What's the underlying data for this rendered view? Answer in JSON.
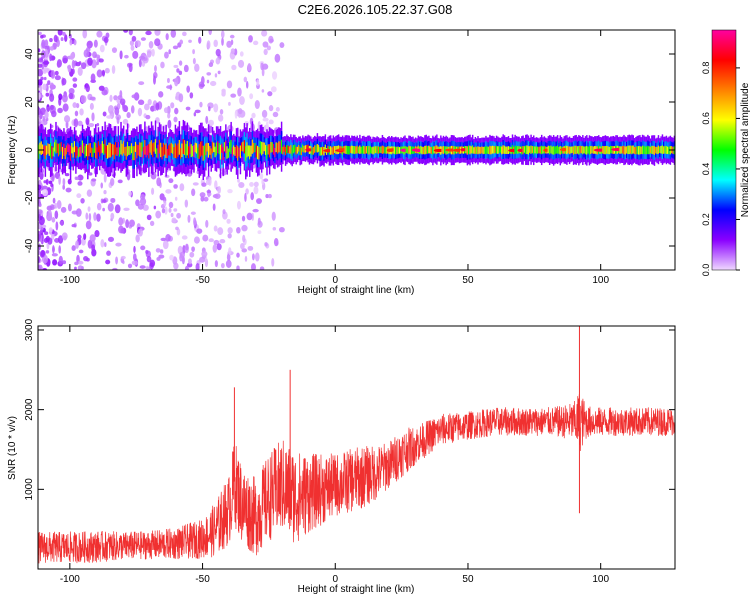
{
  "page": {
    "title": "C2E6.2026.105.22.37.G08"
  },
  "chart_data": [
    {
      "type": "heatmap",
      "xlabel": "Height of straight line (km)",
      "ylabel": "Frequency (Hz)",
      "xlim": [
        -112,
        128
      ],
      "ylim": [
        -50,
        50
      ],
      "x_ticks": [
        -100,
        -50,
        0,
        50,
        100
      ],
      "y_ticks": [
        -40,
        -20,
        0,
        20,
        40
      ],
      "colorbar": {
        "label": "Normalized spectral amplitude",
        "range": [
          0,
          0.95
        ],
        "ticks": [
          "0.0",
          "0.2",
          "0.4",
          "0.6",
          "0.8"
        ],
        "colors": [
          "#f0d9ff",
          "#8a00ff",
          "#0000ff",
          "#00ffff",
          "#00ff00",
          "#ffff00",
          "#ff8000",
          "#ff0000",
          "#ff00a0"
        ]
      },
      "features": {
        "carrier_line_freq_hz": 0,
        "carrier_line_x_range": [
          -112,
          128
        ],
        "noise_region_x_range": [
          -112,
          -20
        ],
        "noise_region_freq_range": [
          -50,
          50
        ]
      }
    },
    {
      "type": "line",
      "xlabel": "Height of straight line (km)",
      "ylabel": "SNR (10 * v/v)",
      "xlim": [
        -112,
        128
      ],
      "ylim": [
        0,
        3050
      ],
      "x_ticks": [
        -100,
        -50,
        0,
        50,
        100
      ],
      "y_ticks": [
        1000,
        2000,
        3000
      ],
      "color": "#f03030",
      "series": [
        {
          "x": [
            -112,
            -100,
            -90,
            -80,
            -70,
            -60,
            -50,
            -45,
            -40,
            -38,
            -35,
            -30,
            -25,
            -20,
            -15,
            -10,
            -5,
            0,
            5,
            10,
            15,
            20,
            25,
            30,
            35,
            40,
            50,
            60,
            70,
            80,
            85,
            90,
            92,
            95,
            100,
            110,
            120,
            128
          ],
          "y": [
            270,
            270,
            280,
            290,
            300,
            320,
            380,
            500,
            750,
            1100,
            800,
            650,
            900,
            1050,
            900,
            950,
            1000,
            1050,
            1100,
            1150,
            1200,
            1300,
            1450,
            1550,
            1650,
            1750,
            1800,
            1850,
            1850,
            1850,
            1850,
            1850,
            1850,
            1850,
            1850,
            1850,
            1850,
            1850
          ],
          "spread": [
            200,
            200,
            200,
            180,
            180,
            200,
            250,
            350,
            450,
            550,
            500,
            500,
            550,
            600,
            600,
            500,
            450,
            400,
            400,
            400,
            350,
            300,
            300,
            250,
            220,
            200,
            180,
            180,
            180,
            180,
            200,
            250,
            400,
            200,
            180,
            180,
            180,
            180
          ]
        }
      ],
      "annotations": [
        {
          "x": -38,
          "y": 2280,
          "label": ""
        },
        {
          "x": -17,
          "y": 2500,
          "label": ""
        },
        {
          "x": 92,
          "y": 3050,
          "label": ""
        },
        {
          "x": 92,
          "y": 700,
          "label": ""
        }
      ]
    }
  ]
}
